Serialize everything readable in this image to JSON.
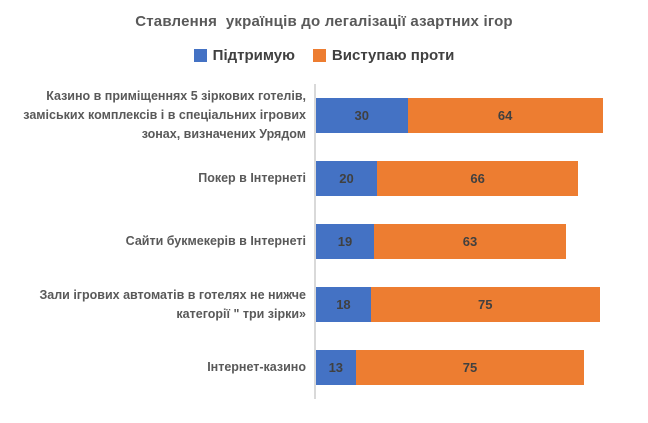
{
  "chart_data": {
    "type": "bar",
    "orientation": "horizontal",
    "stacked": true,
    "title": "Ставлення  українців до легалізації азартних ігор",
    "categories": [
      "Казино в приміщеннях 5 зіркових готелів, заміських комплексів і в спеціальних ігрових зонах, визначених Урядом",
      "Покер в Інтернеті",
      "Сайти букмекерів в Інтернеті",
      "Зали ігрових автоматів в готелях не нижче категорії \" три зірки»",
      "Інтернет-казино"
    ],
    "series": [
      {
        "name": "Підтримую",
        "color": "#4472C4",
        "values": [
          30,
          20,
          19,
          18,
          13
        ]
      },
      {
        "name": "Виступаю проти",
        "color": "#ED7D31",
        "values": [
          64,
          66,
          63,
          75,
          75
        ]
      }
    ],
    "xlim": [
      0,
      100
    ],
    "data_labels": true,
    "legend_position": "top",
    "axis_line_color": "#d9d9d9",
    "label_color": "#595959",
    "value_label_color": "#404040",
    "grid": false
  }
}
